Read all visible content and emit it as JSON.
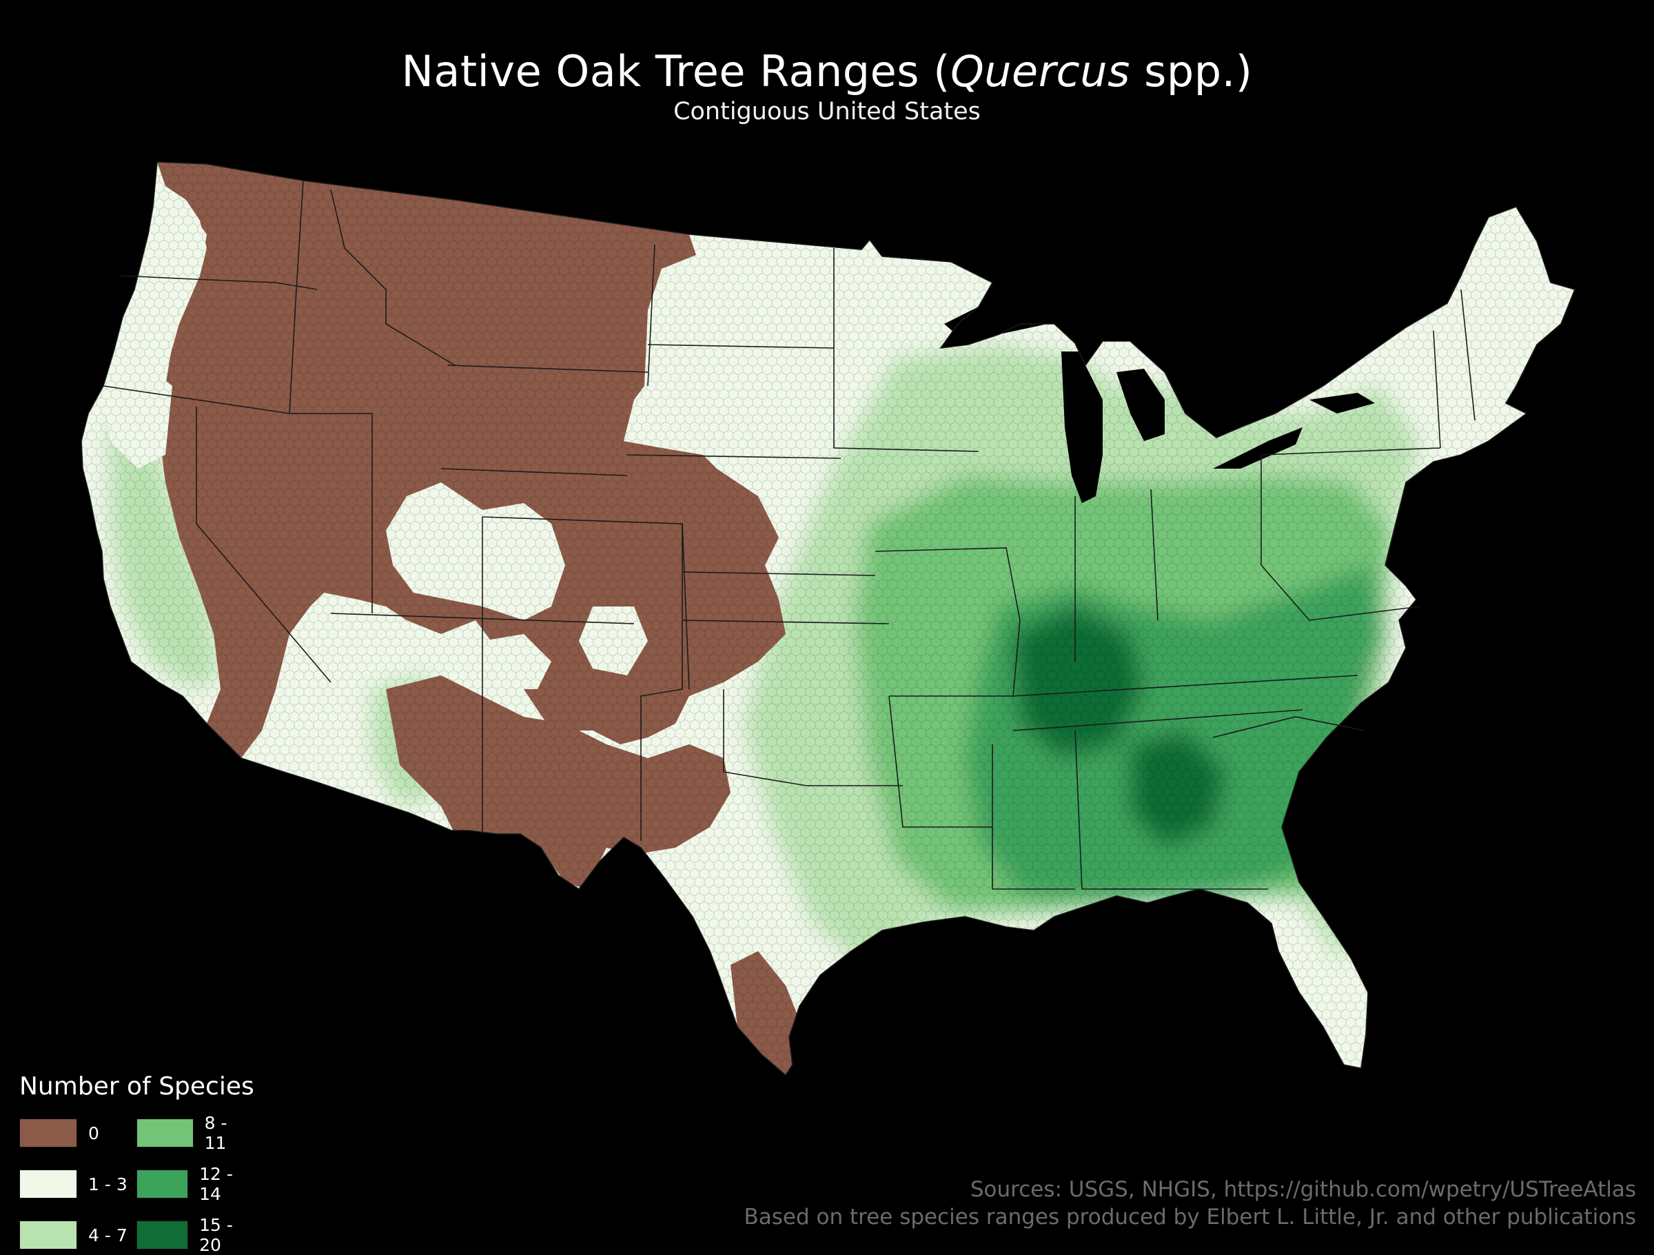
{
  "title": {
    "pre": "Native Oak Tree Ranges (",
    "italic": "Quercus",
    "post": " spp.)"
  },
  "subtitle": "Contiguous United States",
  "legend": {
    "title": "Number of Species",
    "classes": [
      {
        "label": "0",
        "color": "#8b5a48"
      },
      {
        "label": "1 - 3",
        "color": "#f0f8ea"
      },
      {
        "label": "4 - 7",
        "color": "#b9e2b1"
      },
      {
        "label": "8 - 11",
        "color": "#73c477"
      },
      {
        "label": "12 - 14",
        "color": "#3ca35b"
      },
      {
        "label": "15 - 20",
        "color": "#0f6d35"
      }
    ]
  },
  "sources": {
    "line1": "Sources: USGS, NHGIS, https://github.com/wpetry/USTreeAtlas",
    "line2": "Based on tree species ranges produced by Elbert L. Little, Jr. and other publications"
  },
  "colors": {
    "background": "#000000",
    "borders": "#1a1a1a"
  }
}
